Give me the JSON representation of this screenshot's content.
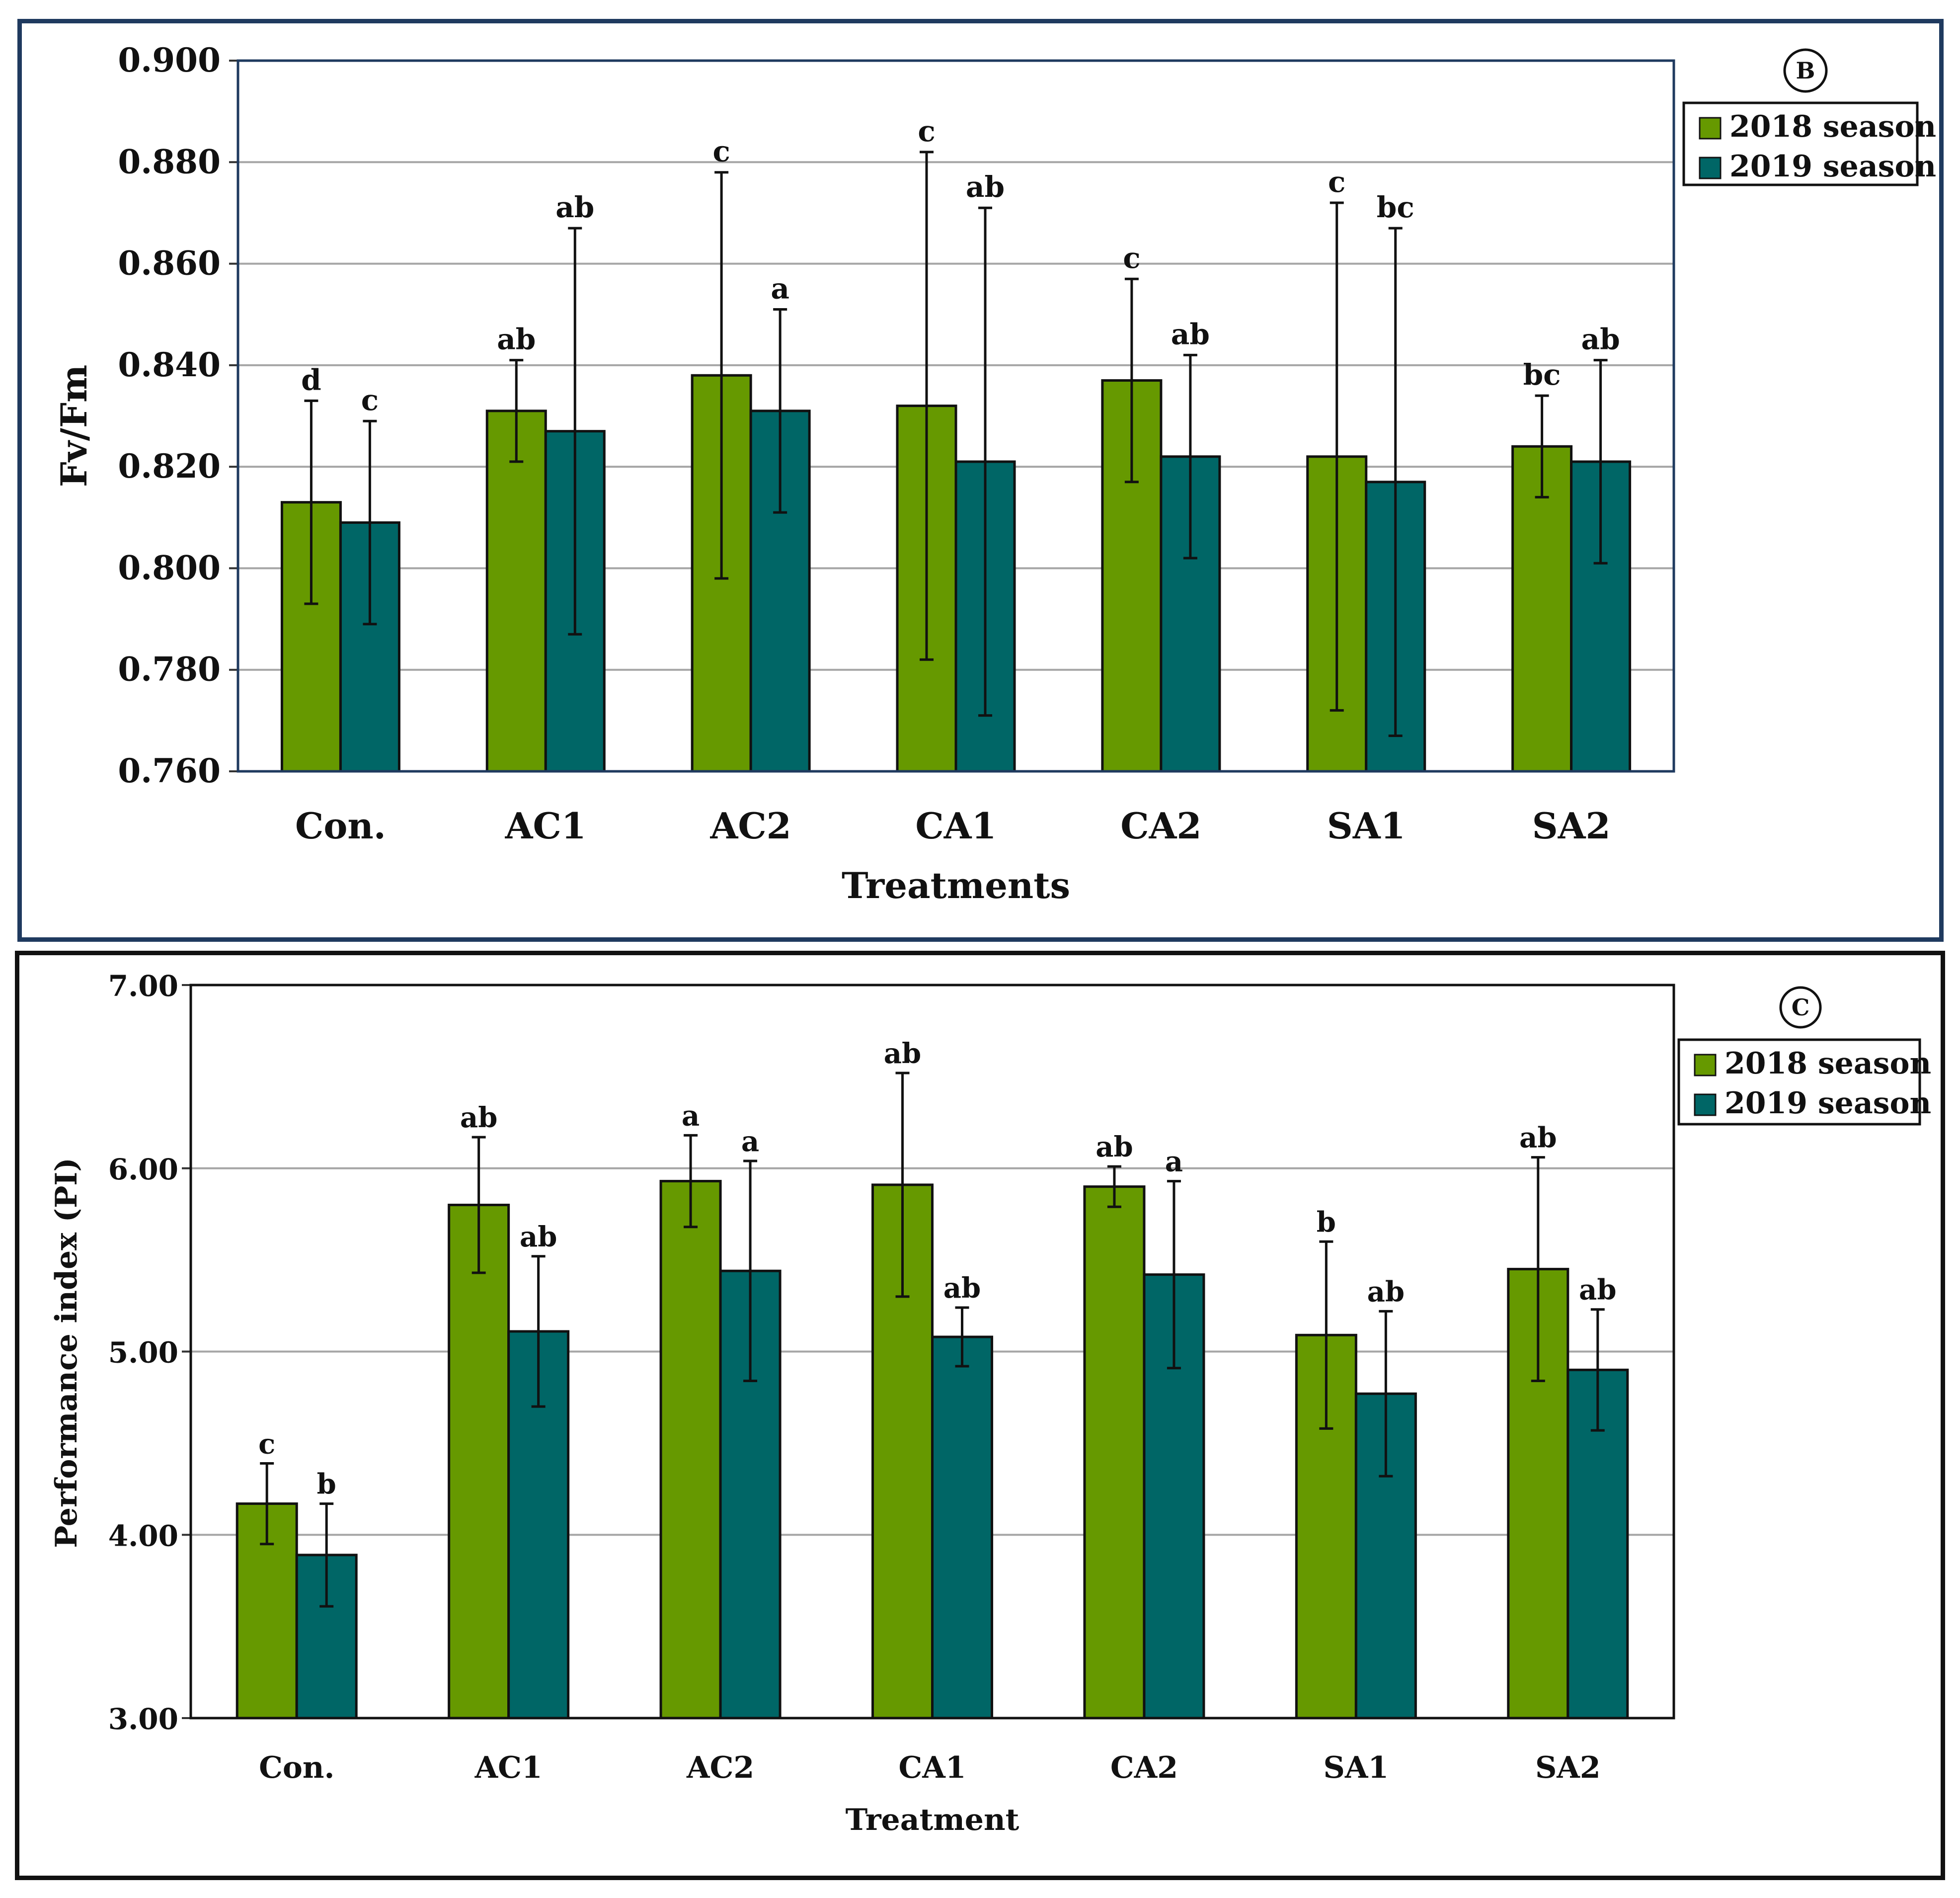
{
  "colors": {
    "s2018": "#669900",
    "s2019": "#006666",
    "grid": "#a6a6a6",
    "axis": "#1f3a5f"
  },
  "chart_data": [
    {
      "type": "bar",
      "panel_label": "B",
      "title": "",
      "xlabel": "Treatments",
      "ylabel": "Fv/Fm",
      "ylim": [
        0.76,
        0.9
      ],
      "ytick_step": 0.02,
      "ytick_labels": [
        "0.760",
        "0.780",
        "0.800",
        "0.820",
        "0.840",
        "0.860",
        "0.880",
        "0.900"
      ],
      "grid": true,
      "legend_position": "top-right",
      "categories": [
        "Con.",
        "AC1",
        "AC2",
        "CA1",
        "CA2",
        "SA1",
        "SA2"
      ],
      "series": [
        {
          "name": "2018 season",
          "values": [
            0.813,
            0.831,
            0.838,
            0.832,
            0.837,
            0.822,
            0.824
          ],
          "errors": [
            0.02,
            0.01,
            0.04,
            0.05,
            0.02,
            0.05,
            0.01
          ],
          "letters": [
            "d",
            "ab",
            "c",
            "c",
            "c",
            "c",
            "bc"
          ]
        },
        {
          "name": "2019 season",
          "values": [
            0.809,
            0.827,
            0.831,
            0.821,
            0.822,
            0.817,
            0.821
          ],
          "errors": [
            0.02,
            0.04,
            0.02,
            0.05,
            0.02,
            0.05,
            0.02
          ],
          "letters": [
            "c",
            "ab",
            "a",
            "ab",
            "ab",
            "bc",
            "ab"
          ]
        }
      ]
    },
    {
      "type": "bar",
      "panel_label": "C",
      "title": "",
      "xlabel": "Treatment",
      "ylabel": "Performance index (PI)",
      "ylim": [
        3.0,
        7.0
      ],
      "ytick_step": 1.0,
      "ytick_labels": [
        "3.00",
        "4.00",
        "5.00",
        "6.00",
        "7.00"
      ],
      "grid": true,
      "legend_position": "top-right",
      "categories": [
        "Con.",
        "AC1",
        "AC2",
        "CA1",
        "CA2",
        "SA1",
        "SA2"
      ],
      "series": [
        {
          "name": "2018 season",
          "values": [
            4.17,
            5.8,
            5.93,
            5.91,
            5.9,
            5.09,
            5.45
          ],
          "errors": [
            0.22,
            0.37,
            0.25,
            0.61,
            0.11,
            0.51,
            0.61
          ],
          "letters": [
            "c",
            "ab",
            "a",
            "ab",
            "ab",
            "b",
            "ab"
          ]
        },
        {
          "name": "2019 season",
          "values": [
            3.89,
            5.11,
            5.44,
            5.08,
            5.42,
            4.77,
            4.9
          ],
          "errors": [
            0.28,
            0.41,
            0.6,
            0.16,
            0.51,
            0.45,
            0.33
          ],
          "letters": [
            "b",
            "ab",
            "a",
            "ab",
            "a",
            "ab",
            "ab"
          ]
        }
      ]
    }
  ]
}
